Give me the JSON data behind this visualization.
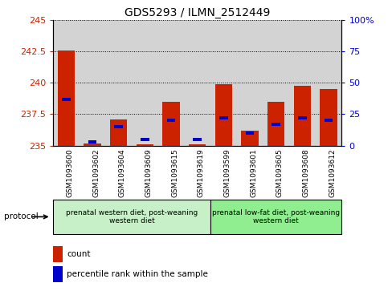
{
  "title": "GDS5293 / ILMN_2512449",
  "samples": [
    "GSM1093600",
    "GSM1093602",
    "GSM1093604",
    "GSM1093609",
    "GSM1093615",
    "GSM1093619",
    "GSM1093599",
    "GSM1093601",
    "GSM1093605",
    "GSM1093608",
    "GSM1093612"
  ],
  "count_values": [
    242.6,
    235.15,
    237.1,
    235.1,
    238.5,
    235.1,
    239.9,
    236.2,
    238.5,
    239.8,
    239.5
  ],
  "percentile_values": [
    37,
    3,
    15,
    5,
    20,
    5,
    22,
    10,
    17,
    22,
    20
  ],
  "ymin": 235,
  "ymax": 245,
  "yticks": [
    235,
    237.5,
    240,
    242.5,
    245
  ],
  "y2min": 0,
  "y2max": 100,
  "y2ticks": [
    0,
    25,
    50,
    75,
    100
  ],
  "group1_label": "prenatal western diet, post-weaning\nwestern diet",
  "group2_label": "prenatal low-fat diet, post-weaning\nwestern diet",
  "group1_count": 6,
  "group2_count": 5,
  "bar_color": "#cc2200",
  "percentile_color": "#0000cc",
  "background_color": "#d3d3d3",
  "group1_bg": "#c8f0c8",
  "group2_bg": "#90ee90",
  "protocol_text": "protocol",
  "legend_count": "count",
  "legend_percentile": "percentile rank within the sample"
}
